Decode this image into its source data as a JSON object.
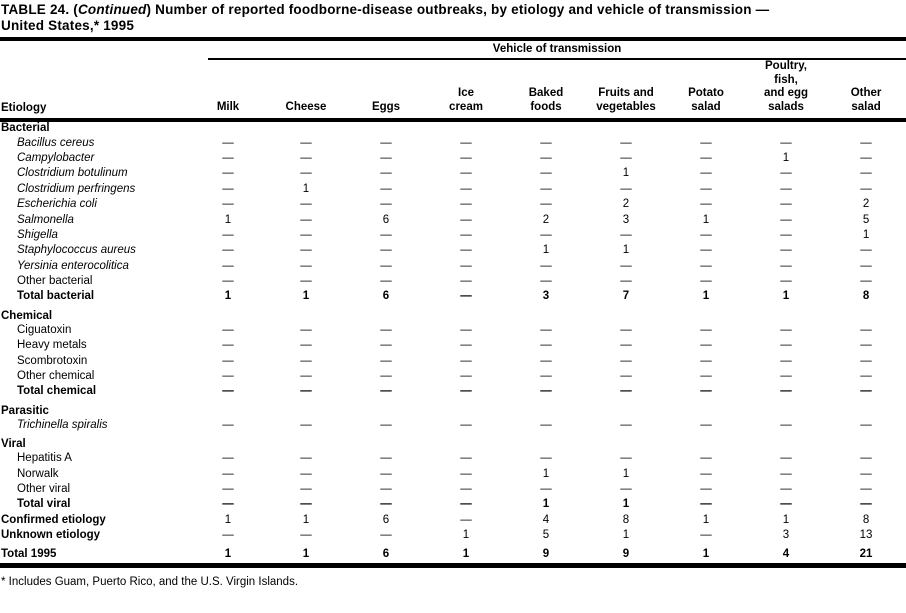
{
  "title": {
    "part1": "TABLE 24. (",
    "part2": "Continued",
    "part3": ") Number of reported foodborne-disease outbreaks, by etiology and vehicle of transmission —",
    "line2": "United States,* 1995"
  },
  "header": {
    "span_label": "Vehicle of transmission",
    "etiology_label": "Etiology",
    "columns": [
      "Milk",
      "Cheese",
      "Eggs",
      "Ice\ncream",
      "Baked\nfoods",
      "Fruits and\nvegetables",
      "Potato\nsalad",
      "Poultry,\nfish,\nand egg\nsalads",
      "Other\nsalad"
    ]
  },
  "rows": [
    {
      "label": "Bacterial",
      "style": "section",
      "gap": false,
      "cells": null
    },
    {
      "label": "Bacillus cereus",
      "style": "species",
      "gap": false,
      "cells": [
        "—",
        "—",
        "—",
        "—",
        "—",
        "—",
        "—",
        "—",
        "—"
      ]
    },
    {
      "label": "Campylobacter",
      "style": "species",
      "gap": false,
      "cells": [
        "—",
        "—",
        "—",
        "—",
        "—",
        "—",
        "—",
        "1",
        "—"
      ]
    },
    {
      "label": "Clostridium botulinum",
      "style": "species",
      "gap": false,
      "cells": [
        "—",
        "—",
        "—",
        "—",
        "—",
        "1",
        "—",
        "—",
        "—"
      ]
    },
    {
      "label": "Clostridium perfringens",
      "style": "species",
      "gap": false,
      "cells": [
        "—",
        "1",
        "—",
        "—",
        "—",
        "—",
        "—",
        "—",
        "—"
      ]
    },
    {
      "label": "Escherichia coli",
      "style": "species",
      "gap": false,
      "cells": [
        "—",
        "—",
        "—",
        "—",
        "—",
        "2",
        "—",
        "—",
        "2"
      ]
    },
    {
      "label": "Salmonella",
      "style": "species",
      "gap": false,
      "cells": [
        "1",
        "—",
        "6",
        "—",
        "2",
        "3",
        "1",
        "—",
        "5"
      ]
    },
    {
      "label": "Shigella",
      "style": "species",
      "gap": false,
      "cells": [
        "—",
        "—",
        "—",
        "—",
        "—",
        "—",
        "—",
        "—",
        "1"
      ]
    },
    {
      "label": "Staphylococcus aureus",
      "style": "species",
      "gap": false,
      "cells": [
        "—",
        "—",
        "—",
        "—",
        "1",
        "1",
        "—",
        "—",
        "—"
      ]
    },
    {
      "label": "Yersinia enterocolitica",
      "style": "species",
      "gap": false,
      "cells": [
        "—",
        "—",
        "—",
        "—",
        "—",
        "—",
        "—",
        "—",
        "—"
      ]
    },
    {
      "label": "Other bacterial",
      "style": "plain",
      "gap": false,
      "cells": [
        "—",
        "—",
        "—",
        "—",
        "—",
        "—",
        "—",
        "—",
        "—"
      ]
    },
    {
      "label": "Total bacterial",
      "style": "total",
      "gap": false,
      "cells": [
        "1",
        "1",
        "6",
        "—",
        "3",
        "7",
        "1",
        "1",
        "8"
      ]
    },
    {
      "label": "Chemical",
      "style": "section",
      "gap": true,
      "cells": null
    },
    {
      "label": "Ciguatoxin",
      "style": "plain",
      "gap": false,
      "cells": [
        "—",
        "—",
        "—",
        "—",
        "—",
        "—",
        "—",
        "—",
        "—"
      ]
    },
    {
      "label": "Heavy metals",
      "style": "plain",
      "gap": false,
      "cells": [
        "—",
        "—",
        "—",
        "—",
        "—",
        "—",
        "—",
        "—",
        "—"
      ]
    },
    {
      "label": "Scombrotoxin",
      "style": "plain",
      "gap": false,
      "cells": [
        "—",
        "—",
        "—",
        "—",
        "—",
        "—",
        "—",
        "—",
        "—"
      ]
    },
    {
      "label": "Other chemical",
      "style": "plain",
      "gap": false,
      "cells": [
        "—",
        "—",
        "—",
        "—",
        "—",
        "—",
        "—",
        "—",
        "—"
      ]
    },
    {
      "label": "Total chemical",
      "style": "total",
      "gap": false,
      "cells": [
        "—",
        "—",
        "—",
        "—",
        "—",
        "—",
        "—",
        "—",
        "—"
      ]
    },
    {
      "label": "Parasitic",
      "style": "section",
      "gap": true,
      "cells": null
    },
    {
      "label": "Trichinella spiralis",
      "style": "species",
      "gap": false,
      "cells": [
        "—",
        "—",
        "—",
        "—",
        "—",
        "—",
        "—",
        "—",
        "—"
      ]
    },
    {
      "label": "Viral",
      "style": "section",
      "gap": true,
      "cells": null
    },
    {
      "label": "Hepatitis A",
      "style": "plain",
      "gap": false,
      "cells": [
        "—",
        "—",
        "—",
        "—",
        "—",
        "—",
        "—",
        "—",
        "—"
      ]
    },
    {
      "label": "Norwalk",
      "style": "plain",
      "gap": false,
      "cells": [
        "—",
        "—",
        "—",
        "—",
        "1",
        "1",
        "—",
        "—",
        "—"
      ]
    },
    {
      "label": "Other viral",
      "style": "plain",
      "gap": false,
      "cells": [
        "—",
        "—",
        "—",
        "—",
        "—",
        "—",
        "—",
        "—",
        "—"
      ]
    },
    {
      "label": "Total viral",
      "style": "total",
      "gap": false,
      "cells": [
        "—",
        "—",
        "—",
        "—",
        "1",
        "1",
        "—",
        "—",
        "—"
      ]
    },
    {
      "label": "Confirmed etiology",
      "style": "flush",
      "gap": false,
      "cells": [
        "1",
        "1",
        "6",
        "—",
        "4",
        "8",
        "1",
        "1",
        "8"
      ]
    },
    {
      "label": "Unknown etiology",
      "style": "flush",
      "gap": false,
      "cells": [
        "—",
        "—",
        "—",
        "1",
        "5",
        "1",
        "—",
        "3",
        "13"
      ]
    },
    {
      "label": "Total 1995",
      "style": "grand",
      "gap": true,
      "cells": [
        "1",
        "1",
        "6",
        "1",
        "9",
        "9",
        "1",
        "4",
        "21"
      ]
    }
  ],
  "footnote": "* Includes Guam, Puerto Rico, and the U.S. Virgin Islands.",
  "colors": {
    "text": "#000000",
    "background": "#ffffff",
    "rule": "#000000"
  }
}
